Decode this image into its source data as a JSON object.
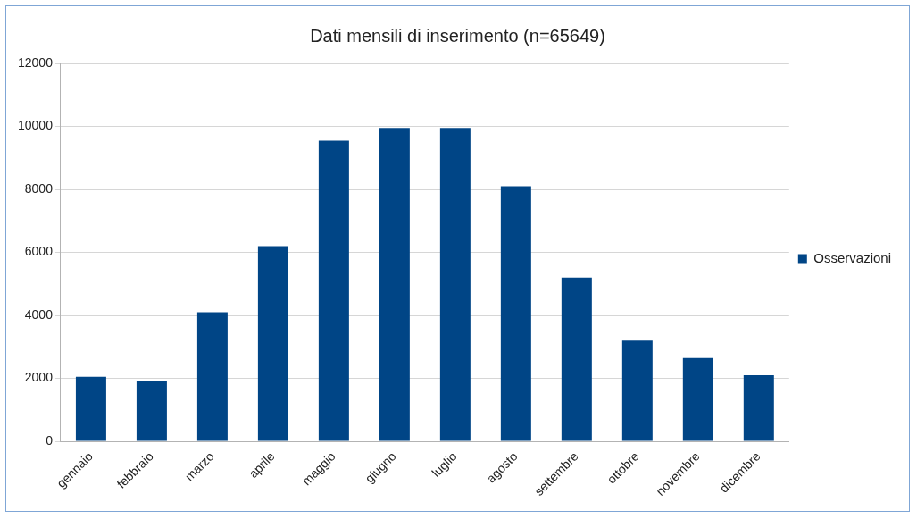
{
  "chart_data": {
    "type": "bar",
    "title": "Dati mensili di inserimento (n=65649)",
    "categories": [
      "gennaio",
      "febbraio",
      "marzo",
      "aprile",
      "maggio",
      "giugno",
      "luglio",
      "agosto",
      "settembre",
      "ottobre",
      "novembre",
      "dicembre"
    ],
    "series": [
      {
        "name": "Osservazioni",
        "color": "#004586",
        "values": [
          2050,
          1900,
          4100,
          6200,
          9550,
          9950,
          9950,
          8100,
          5200,
          3200,
          2650,
          2100
        ]
      }
    ],
    "ylim": [
      0,
      12000
    ],
    "yticks": [
      0,
      2000,
      4000,
      6000,
      8000,
      10000,
      12000
    ],
    "grid": "y",
    "legend": "right"
  }
}
